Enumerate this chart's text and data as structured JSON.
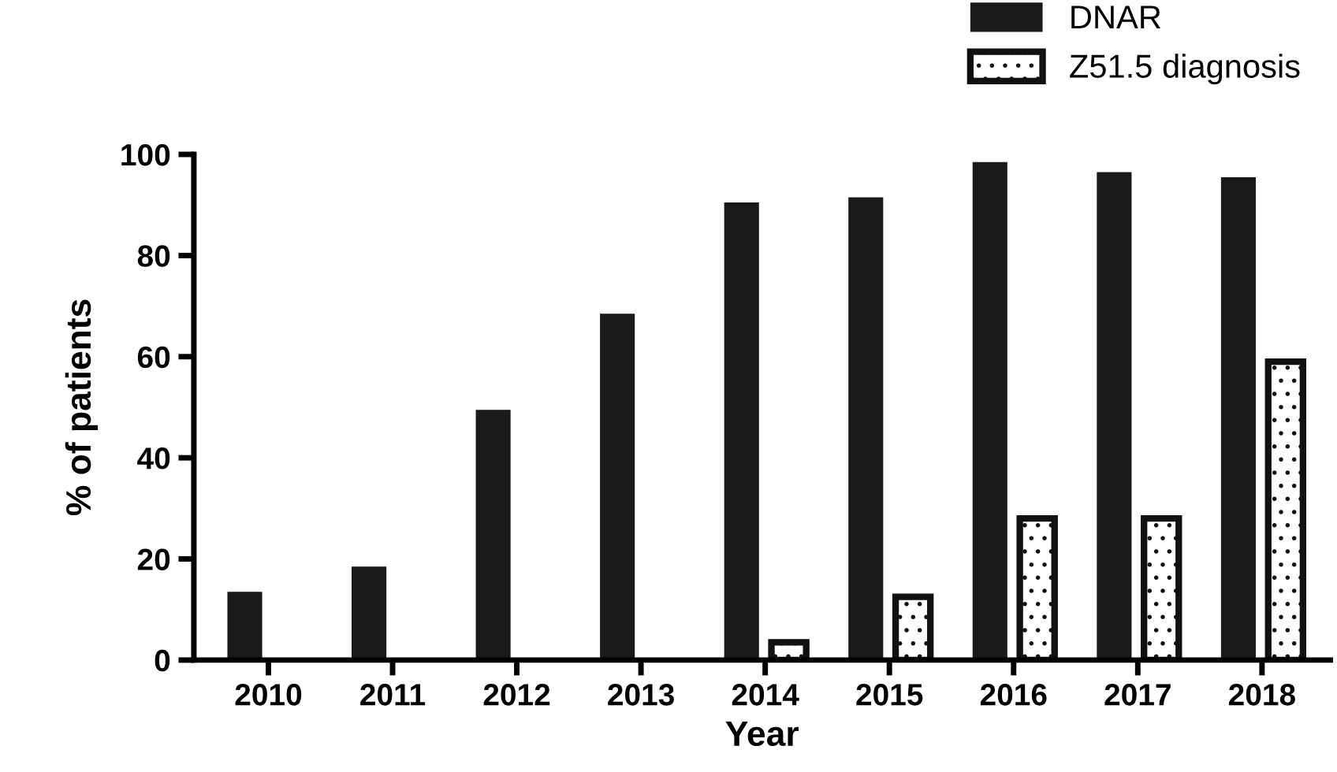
{
  "chart_data": {
    "type": "bar",
    "xlabel": "Year",
    "ylabel": "% of patients",
    "categories": [
      "2010",
      "2011",
      "2012",
      "2013",
      "2014",
      "2015",
      "2016",
      "2017",
      "2018"
    ],
    "series": [
      {
        "name": "DNAR",
        "color": "#1a1a1a",
        "values": [
          13.5,
          18.5,
          49.5,
          68.5,
          90.5,
          91.5,
          98.5,
          96.5,
          95.5
        ]
      },
      {
        "name": "Z51.5 diagnosis",
        "color": "#111111",
        "values": [
          null,
          null,
          null,
          null,
          3.5,
          12.5,
          28,
          28,
          59
        ]
      }
    ],
    "ylim": [
      0,
      100
    ],
    "yticks": [
      0,
      20,
      40,
      60,
      80,
      100
    ],
    "grid": false,
    "legend": "top right"
  }
}
